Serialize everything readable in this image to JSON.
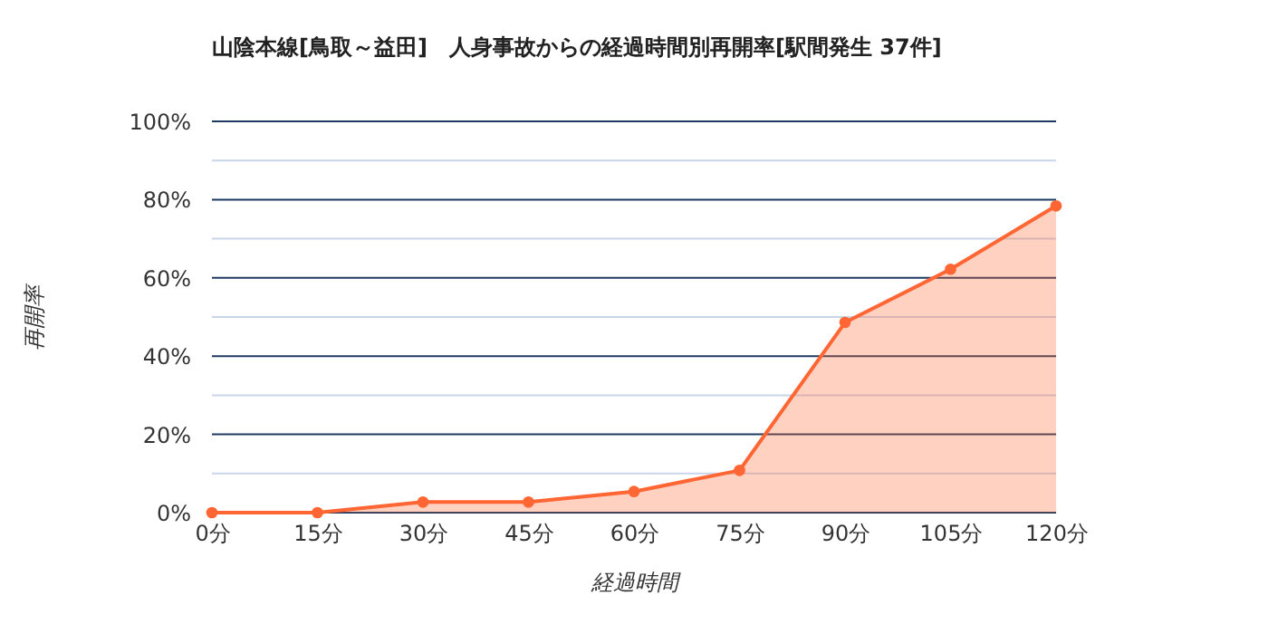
{
  "chart_data": {
    "type": "area",
    "title": "山陰本線[鳥取～益田]　人身事故からの経過時間別再開率[駅間発生 37件]",
    "xlabel": "経過時間",
    "ylabel": "再開率",
    "categories": [
      "0分",
      "15分",
      "30分",
      "45分",
      "60分",
      "75分",
      "90分",
      "105分",
      "120分"
    ],
    "series": [
      {
        "color": "#ff6633",
        "values": [
          0,
          0,
          2.7,
          2.7,
          5.4,
          10.8,
          48.6,
          62.2,
          78.4
        ]
      }
    ],
    "ylim": [
      0,
      100
    ],
    "yticks": [
      {
        "value": 0,
        "label": "0%"
      },
      {
        "value": 10,
        "label": null
      },
      {
        "value": 20,
        "label": "20%"
      },
      {
        "value": 30,
        "label": null
      },
      {
        "value": 40,
        "label": "40%"
      },
      {
        "value": 50,
        "label": null
      },
      {
        "value": 60,
        "label": "60%"
      },
      {
        "value": 70,
        "label": null
      },
      {
        "value": 80,
        "label": "80%"
      },
      {
        "value": 90,
        "label": null
      },
      {
        "value": 100,
        "label": "100%"
      }
    ],
    "grid": "y",
    "marker": "circle",
    "line_style": "solid",
    "legend": false
  }
}
